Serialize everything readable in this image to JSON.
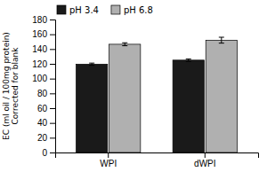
{
  "chart_data": {
    "type": "bar",
    "categories": [
      "WPI",
      "dWPI"
    ],
    "series": [
      {
        "name": "pH 3.4",
        "color": "#1a1a1a",
        "values": [
          119.5,
          125.0
        ],
        "errors": [
          1.5,
          1.5
        ]
      },
      {
        "name": "pH 6.8",
        "color": "#b0b0b0",
        "values": [
          146.5,
          152.0
        ],
        "errors": [
          2.0,
          4.0
        ]
      }
    ],
    "y_label": "EC (ml oil / 100mg protein)\nCorrected for blank",
    "ylim": [
      0,
      180
    ],
    "yticks": [
      0,
      20,
      40,
      60,
      80,
      100,
      120,
      140,
      160,
      180
    ],
    "grid": false,
    "legend": "upper left"
  }
}
